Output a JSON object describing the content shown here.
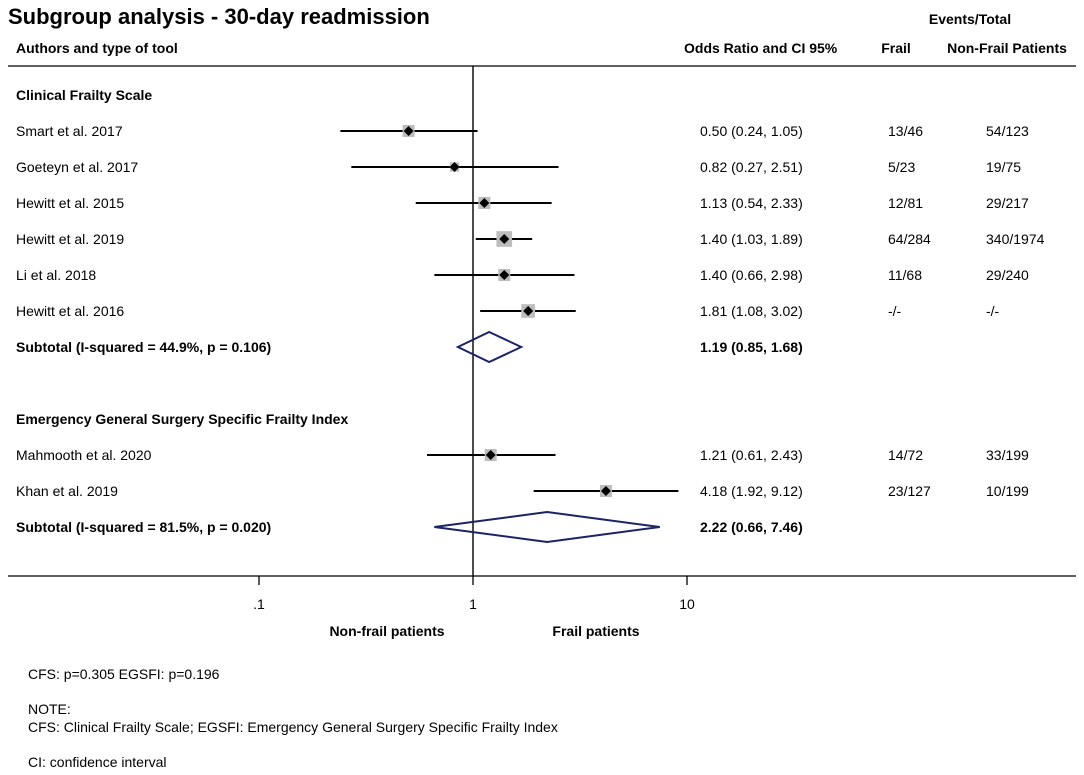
{
  "chart_data": {
    "type": "forest",
    "title": "Subgroup analysis - 30-day readmission",
    "headers": {
      "study_col": "Authors and  type of tool",
      "or_col": "Odds Ratio and CI 95%",
      "events_group": "Events/Total",
      "frail_col": "Frail",
      "nonfrail_col": "Non-Frail Patients"
    },
    "x_axis": {
      "scale": "log",
      "range": [
        0.0585,
        11.5
      ],
      "null_line": 1,
      "ticks": [
        {
          "value": 0.1,
          "label": ".1"
        },
        {
          "value": 1,
          "label": "1"
        },
        {
          "value": 10,
          "label": "10"
        }
      ],
      "left_label": "Non-frail patients",
      "right_label": "Frail patients"
    },
    "groups": [
      {
        "name": "Clinical Frailty Scale",
        "studies": [
          {
            "label": "Smart  et al. 2017",
            "or": 0.5,
            "lo": 0.24,
            "hi": 1.05,
            "or_text": "0.50 (0.24, 1.05)",
            "frail": "13/46",
            "nonfrail": "54/123",
            "weight": 1.0
          },
          {
            "label": "Goeteyn et al. 2017",
            "or": 0.82,
            "lo": 0.27,
            "hi": 2.51,
            "or_text": "0.82 (0.27, 2.51)",
            "frail": "5/23",
            "nonfrail": "19/75",
            "weight": 0.6
          },
          {
            "label": "Hewitt et al. 2015",
            "or": 1.13,
            "lo": 0.54,
            "hi": 2.33,
            "or_text": "1.13 (0.54, 2.33)",
            "frail": "12/81",
            "nonfrail": "29/217",
            "weight": 1.0
          },
          {
            "label": "Hewitt et al. 2019",
            "or": 1.4,
            "lo": 1.03,
            "hi": 1.89,
            "or_text": "1.40 (1.03, 1.89)",
            "frail": "64/284",
            "nonfrail": "340/1974",
            "weight": 1.7
          },
          {
            "label": "Li  et al. 2018",
            "or": 1.4,
            "lo": 0.66,
            "hi": 2.98,
            "or_text": "1.40 (0.66, 2.98)",
            "frail": "11/68",
            "nonfrail": "29/240",
            "weight": 1.0
          },
          {
            "label": "Hewitt et al. 2016",
            "or": 1.81,
            "lo": 1.08,
            "hi": 3.02,
            "or_text": "1.81 (1.08, 3.02)",
            "frail": "-/-",
            "nonfrail": "-/-",
            "weight": 1.3
          }
        ],
        "subtotal": {
          "label": "Subtotal  (I-squared = 44.9%, p = 0.106)",
          "or": 1.19,
          "lo": 0.85,
          "hi": 1.68,
          "or_text": "1.19 (0.85, 1.68)"
        }
      },
      {
        "name": "Emergency General Surgery Specific Frailty Index",
        "studies": [
          {
            "label": "Mahmooth  et al. 2020",
            "or": 1.21,
            "lo": 0.61,
            "hi": 2.43,
            "or_text": "1.21 (0.61, 2.43)",
            "frail": "14/72",
            "nonfrail": "33/199",
            "weight": 1.0
          },
          {
            "label": "Khan et al. 2019",
            "or": 4.18,
            "lo": 1.92,
            "hi": 9.12,
            "or_text": "4.18 (1.92, 9.12)",
            "frail": "23/127",
            "nonfrail": "10/199",
            "weight": 1.0
          }
        ],
        "subtotal": {
          "label": "Subtotal  (I-squared = 81.5%, p = 0.020)",
          "or": 2.22,
          "lo": 0.66,
          "hi": 7.46,
          "or_text": "2.22 (0.66, 7.46)"
        }
      }
    ]
  },
  "footnotes": {
    "heterogeneity": "CFS: p=0.305 EGSFI: p=0.196",
    "note_title": "NOTE:",
    "note_text": "CFS: Clinical Frailty Scale; EGSFI: Emergency General Surgery Specific Frailty Index",
    "ci": "CI: confidence interval"
  },
  "colors": {
    "square": "#bdbdbd",
    "diamond": "#1a2466",
    "line": "#000000"
  }
}
